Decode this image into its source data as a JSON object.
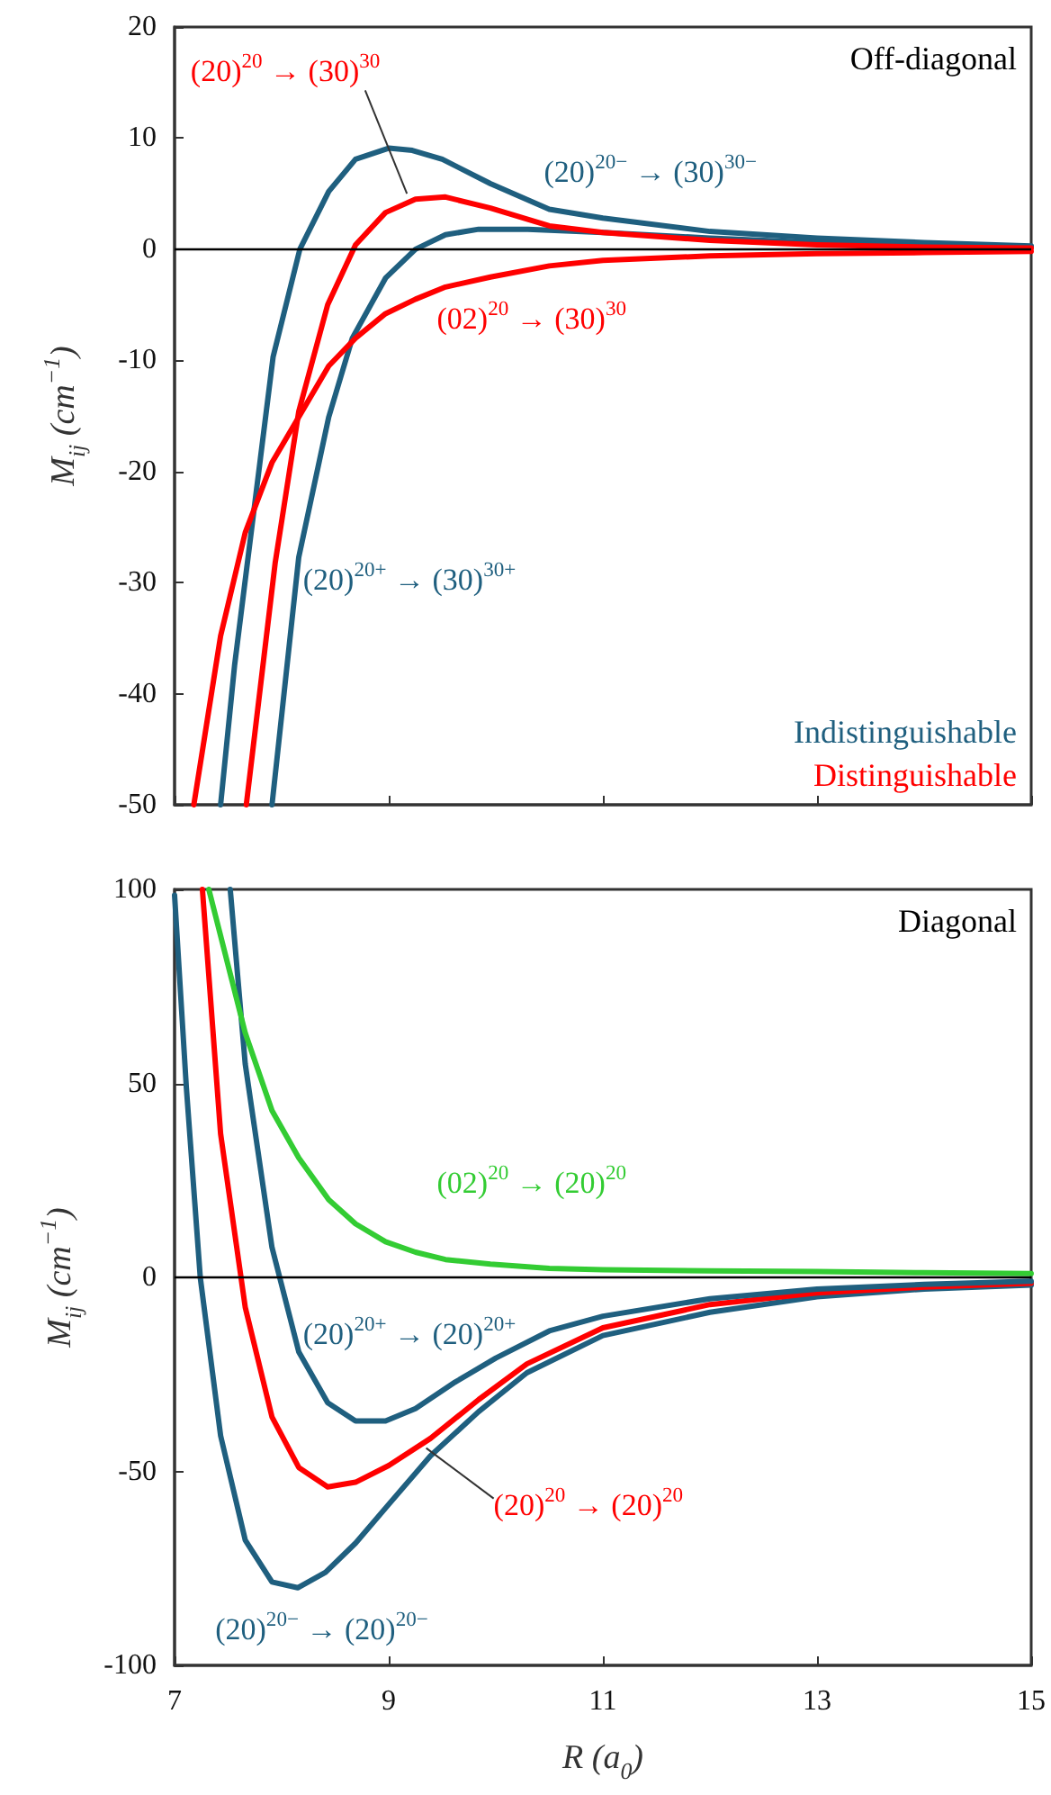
{
  "chart_data": [
    {
      "type": "line",
      "ylabel": "M$_{ij}$ (cm$^{−1}$)",
      "xlim": [
        7,
        15
      ],
      "xticks": [
        7,
        9,
        11,
        13,
        15
      ],
      "ylim": [
        -50,
        20
      ],
      "yticks": [
        -50,
        -40,
        -30,
        -20,
        -10,
        0,
        10,
        20
      ],
      "tick_labels": "y",
      "grid": false,
      "legend": false,
      "marker": "none",
      "line_style": "solid",
      "ref_lines": [
        {
          "axis": "y",
          "value": 0,
          "color": "#000000"
        }
      ],
      "annotations": [
        "Off-diagonal",
        "Indistinguishable",
        "Distinguishable"
      ],
      "series": [
        {
          "name": "(20)$^{20−}$ → (30)$^{30−}$",
          "color": "#1f5f7f",
          "x": [
            7.43,
            7.56,
            7.92,
            8.17,
            8.44,
            8.69,
            9.0,
            9.22,
            9.5,
            9.95,
            10.5,
            11,
            12,
            13,
            14,
            15
          ],
          "values": [
            -50,
            -37.5,
            -9.7,
            0,
            5.2,
            8.1,
            9.1,
            8.9,
            8.1,
            5.9,
            3.6,
            2.8,
            1.6,
            1,
            0.6,
            0.3
          ]
        },
        {
          "name": "(20)$^{20+}$ → (30)$^{30+}$",
          "color": "#1f5f7f",
          "x": [
            7.91,
            8.16,
            8.44,
            8.66,
            8.97,
            9.25,
            9.53,
            9.84,
            10.3,
            11,
            12,
            13,
            14,
            15
          ],
          "values": [
            -50,
            -27.7,
            -15.1,
            -8,
            -2.6,
            0,
            1.3,
            1.8,
            1.8,
            1.5,
            1,
            0.6,
            0.3,
            0.2
          ]
        },
        {
          "name": "(20)$^{20}$ → (30)$^{30}$",
          "color": "#ff0000",
          "x": [
            7.67,
            7.94,
            8.16,
            8.43,
            8.69,
            8.97,
            9.25,
            9.53,
            9.95,
            10.5,
            11,
            12,
            13,
            14,
            15
          ],
          "values": [
            -50,
            -28.2,
            -14.6,
            -5,
            0.4,
            3.3,
            4.5,
            4.7,
            3.7,
            2.1,
            1.5,
            0.8,
            0.4,
            0.2,
            0.1
          ]
        },
        {
          "name": "(02)$^{20}$ → (30)$^{30}$",
          "color": "#ff0000",
          "x": [
            7.18,
            7.43,
            7.66,
            7.91,
            8.16,
            8.44,
            8.69,
            8.97,
            9.25,
            9.53,
            9.95,
            10.5,
            11,
            12,
            13,
            14,
            15
          ],
          "values": [
            -50,
            -34.8,
            -25.5,
            -19.2,
            -15.1,
            -10.5,
            -8,
            -5.8,
            -4.5,
            -3.4,
            -2.5,
            -1.5,
            -1,
            -0.6,
            -0.4,
            -0.3,
            -0.2
          ]
        }
      ]
    },
    {
      "type": "line",
      "xlabel": "R (a$_{0}$)",
      "ylabel": "M$_{ij}$ (cm$^{−1}$)",
      "xlim": [
        7,
        15
      ],
      "xticks": [
        7,
        9,
        11,
        13,
        15
      ],
      "ylim": [
        -100,
        100
      ],
      "yticks": [
        -100,
        -50,
        0,
        50,
        100
      ],
      "grid": false,
      "legend": false,
      "marker": "none",
      "line_style": "solid",
      "ref_lines": [
        {
          "axis": "y",
          "value": 0,
          "color": "#000000"
        }
      ],
      "annotations": [
        "Diagonal"
      ],
      "series": [
        {
          "name": "(20)$^{20−}$ → (20)$^{20−}$",
          "color": "#1f5f7f",
          "x": [
            7.0,
            7.11,
            7.24,
            7.43,
            7.66,
            7.91,
            8.15,
            8.41,
            8.69,
            9.0,
            9.39,
            9.84,
            10.29,
            11,
            12,
            13,
            14,
            15
          ],
          "values": [
            98.5,
            49,
            0,
            -40.8,
            -67.7,
            -78.5,
            -80,
            -76,
            -68.5,
            -58.5,
            -46,
            -34.6,
            -24.6,
            -15,
            -9,
            -5,
            -3,
            -2
          ]
        },
        {
          "name": "(20)$^{20}$ → (20)$^{20}$",
          "color": "#ff0000",
          "x": [
            7.26,
            7.43,
            7.66,
            7.91,
            8.16,
            8.43,
            8.69,
            9.0,
            9.39,
            9.84,
            10.29,
            11,
            12,
            13,
            14,
            15
          ],
          "values": [
            100,
            37,
            -7.7,
            -36,
            -49,
            -54,
            -52.8,
            -48.5,
            -41.5,
            -31.5,
            -22.3,
            -13,
            -7,
            -4,
            -2.5,
            -1.5
          ]
        },
        {
          "name": "(20)$^{20+}$ → (20)$^{20+}$",
          "color": "#1f5f7f",
          "x": [
            7.52,
            7.66,
            7.91,
            8.16,
            8.43,
            8.69,
            8.97,
            9.25,
            9.62,
            10.0,
            10.5,
            11,
            12,
            13,
            14,
            15
          ],
          "values": [
            100,
            55,
            7.7,
            -19.2,
            -32.3,
            -37,
            -37,
            -33.8,
            -27,
            -20.8,
            -13.8,
            -10,
            -5.5,
            -3,
            -1.8,
            -1
          ]
        },
        {
          "name": "(02)$^{20}$ → (20)$^{20}$",
          "color": "#33cc33",
          "x": [
            7.32,
            7.66,
            7.91,
            8.16,
            8.44,
            8.69,
            8.97,
            9.25,
            9.53,
            9.95,
            10.5,
            11,
            12,
            13,
            14,
            15
          ],
          "values": [
            100,
            63,
            43,
            30.8,
            20,
            13.8,
            9.2,
            6.5,
            4.6,
            3.4,
            2.3,
            2,
            1.7,
            1.5,
            1.2,
            1
          ]
        }
      ]
    }
  ]
}
